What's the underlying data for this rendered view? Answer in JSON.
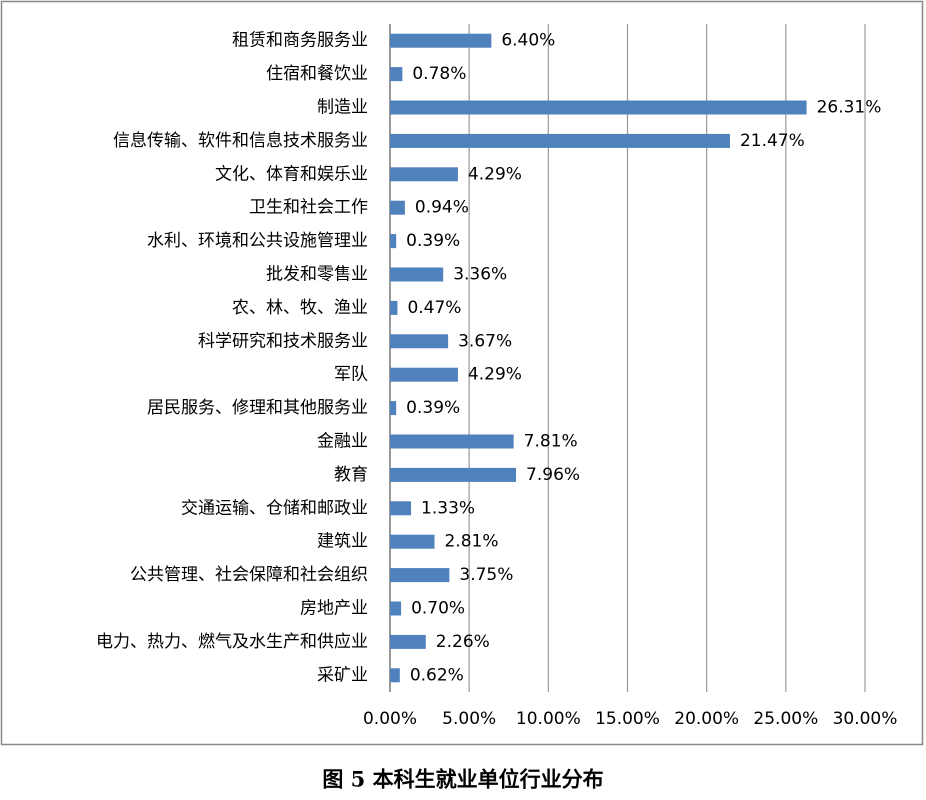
{
  "chart_data": {
    "type": "bar",
    "orientation": "horizontal",
    "title": "图 5 本科生就业单位行业分布",
    "categories": [
      "租赁和商务服务业",
      "住宿和餐饮业",
      "制造业",
      "信息传输、软件和信息技术服务业",
      "文化、体育和娱乐业",
      "卫生和社会工作",
      "水利、环境和公共设施管理业",
      "批发和零售业",
      "农、林、牧、渔业",
      "科学研究和技术服务业",
      "军队",
      "居民服务、修理和其他服务业",
      "金融业",
      "教育",
      "交通运输、仓储和邮政业",
      "建筑业",
      "公共管理、社会保障和社会组织",
      "房地产业",
      "电力、热力、燃气及水生产和供应业",
      "采矿业"
    ],
    "values": [
      6.4,
      0.78,
      26.31,
      21.47,
      4.29,
      0.94,
      0.39,
      3.36,
      0.47,
      3.67,
      4.29,
      0.39,
      7.81,
      7.96,
      1.33,
      2.81,
      3.75,
      0.7,
      2.26,
      0.62
    ],
    "value_labels": [
      "6.40%",
      "0.78%",
      "26.31%",
      "21.47%",
      "4.29%",
      "0.94%",
      "0.39%",
      "3.36%",
      "0.47%",
      "3.67%",
      "4.29%",
      "0.39%",
      "7.81%",
      "7.96%",
      "1.33%",
      "2.81%",
      "3.75%",
      "0.70%",
      "2.26%",
      "0.62%"
    ],
    "color": "#4f81bd",
    "xlim": [
      0,
      30
    ],
    "xticks": [
      {
        "value": 0,
        "label": "0.00%"
      },
      {
        "value": 5,
        "label": "5.00%"
      },
      {
        "value": 10,
        "label": "10.00%"
      },
      {
        "value": 15,
        "label": "15.00%"
      },
      {
        "value": 20,
        "label": "20.00%"
      },
      {
        "value": 25,
        "label": "25.00%"
      },
      {
        "value": 30,
        "label": "30.00%"
      }
    ],
    "grid": true
  }
}
